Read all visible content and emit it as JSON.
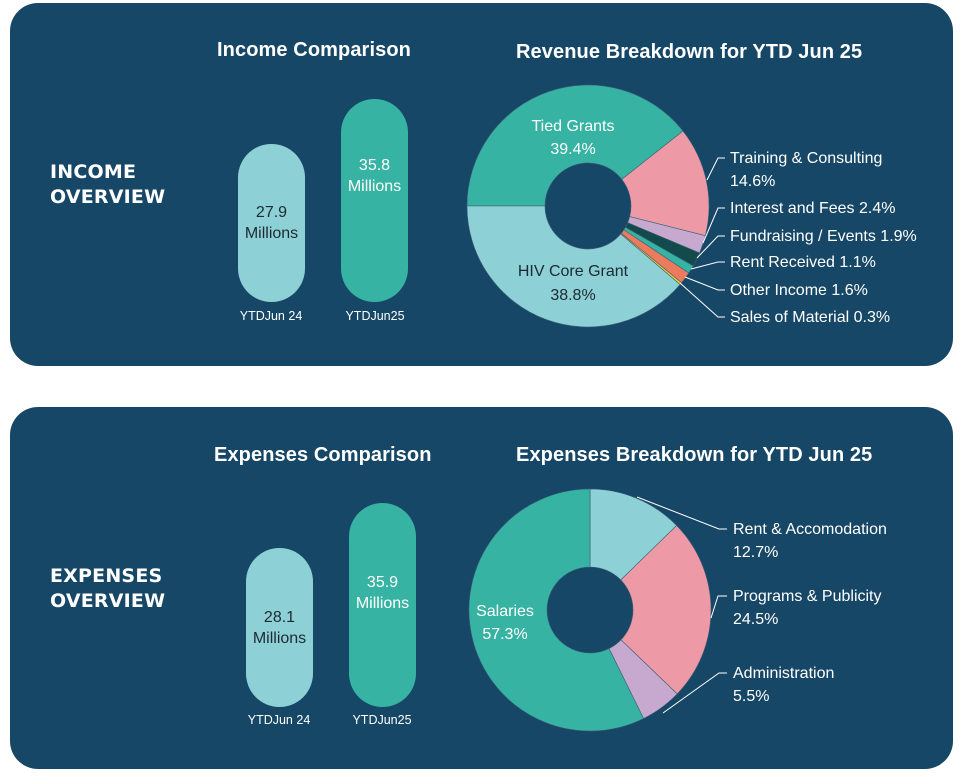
{
  "colors": {
    "panel": "#174766",
    "teal": "#37b3a4",
    "light_blue": "#8dd0d6",
    "pink": "#ee9aa6",
    "lavender": "#c7a9d0",
    "dark_green": "#134a4c",
    "orange": "#ec7a5f",
    "yellow": "#f0d02a"
  },
  "income": {
    "overview_line1": "INCOME",
    "overview_line2": "OVERVIEW",
    "comparison_title": "Income Comparison",
    "pills": [
      {
        "value": "27.9",
        "unit": "Millions",
        "label": "YTDJun 24"
      },
      {
        "value": "35.8",
        "unit": "Millions",
        "label": "YTDJun25"
      }
    ]
  },
  "expenses": {
    "overview_line1": "EXPENSES",
    "overview_line2": "OVERVIEW",
    "comparison_title": "Expenses Comparison",
    "pills": [
      {
        "value": "28.1",
        "unit": "Millions",
        "label": "YTDJun 24"
      },
      {
        "value": "35.9",
        "unit": "Millions",
        "label": "YTDJun25"
      }
    ]
  },
  "chart_data": [
    {
      "type": "bar",
      "title": "Income Comparison",
      "categories": [
        "YTDJun 24",
        "YTDJun25"
      ],
      "values": [
        27.9,
        35.8
      ],
      "unit": "Millions"
    },
    {
      "type": "pie",
      "title": "Revenue Breakdown for YTD Jun 25",
      "donut": true,
      "start": "left",
      "direction": "clockwise",
      "slices": [
        {
          "name": "Tied Grants",
          "value": 39.4,
          "label": "39.4%",
          "color": "#37b3a4",
          "label_position": "inside",
          "text_color": "#ffffff"
        },
        {
          "name": "Training & Consulting",
          "value": 14.6,
          "label": "14.6%",
          "color": "#ee9aa6",
          "label_position": "outside"
        },
        {
          "name": "Interest and Fees",
          "value": 2.4,
          "label": "2.4%",
          "color": "#c7a9d0",
          "label_position": "outside"
        },
        {
          "name": "Fundraising / Events",
          "value": 1.9,
          "label": "1.9%",
          "color": "#134a4c",
          "label_position": "outside"
        },
        {
          "name": "Rent Received",
          "value": 1.1,
          "label": "1.1%",
          "color": "#37b3a4",
          "label_position": "outside"
        },
        {
          "name": "Other Income",
          "value": 1.6,
          "label": "1.6%",
          "color": "#ec7a5f",
          "label_position": "outside"
        },
        {
          "name": "Sales of Material",
          "value": 0.3,
          "label": "0.3%",
          "color": "#f0d02a",
          "label_position": "outside"
        },
        {
          "name": "HIV Core Grant",
          "value": 38.8,
          "label": "38.8%",
          "color": "#8dd0d6",
          "label_position": "inside",
          "text_color": "#1d2a33"
        }
      ]
    },
    {
      "type": "bar",
      "title": "Expenses Comparison",
      "categories": [
        "YTDJun 24",
        "YTDJun25"
      ],
      "values": [
        28.1,
        35.9
      ],
      "unit": "Millions"
    },
    {
      "type": "pie",
      "title": "Expenses Breakdown for YTD Jun 25",
      "donut": true,
      "start": "top",
      "direction": "clockwise",
      "slices": [
        {
          "name": "Rent & Accomodation",
          "value": 12.7,
          "label": "12.7%",
          "color": "#8dd0d6",
          "label_position": "outside"
        },
        {
          "name": "Programs & Publicity",
          "value": 24.5,
          "label": "24.5%",
          "color": "#ee9aa6",
          "label_position": "outside"
        },
        {
          "name": "Administration",
          "value": 5.5,
          "label": "5.5%",
          "color": "#c7a9d0",
          "label_position": "outside"
        },
        {
          "name": "Salaries",
          "value": 57.3,
          "label": "57.3%",
          "color": "#37b3a4",
          "label_position": "inside",
          "text_color": "#ffffff"
        }
      ]
    }
  ]
}
